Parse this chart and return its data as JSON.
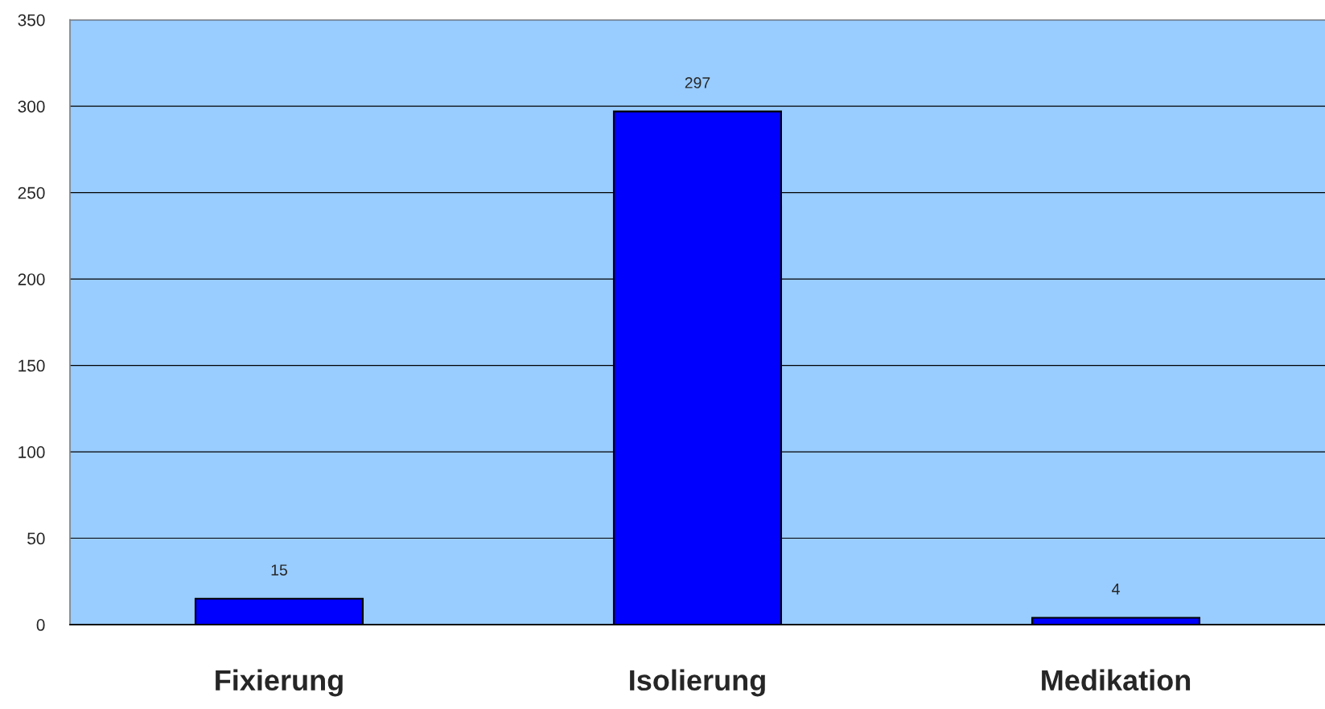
{
  "chart_data": {
    "type": "bar",
    "categories": [
      "Fixierung",
      "Isolierung",
      "Medikation"
    ],
    "values": [
      15,
      297,
      4
    ],
    "color": "#0000ff",
    "ylim": [
      0,
      350
    ],
    "yticks": [
      0,
      50,
      100,
      150,
      200,
      250,
      300,
      350
    ],
    "grid": "y",
    "data_labels": true,
    "legend": false
  }
}
